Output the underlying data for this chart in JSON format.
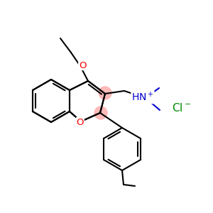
{
  "bg_color": "#ffffff",
  "bond_color": "#000000",
  "o_color": "#ff0000",
  "n_color": "#0000cc",
  "cl_color": "#008800",
  "hl_color": "#ffb3b3",
  "bond_lw": 1.5,
  "font_size": 9
}
